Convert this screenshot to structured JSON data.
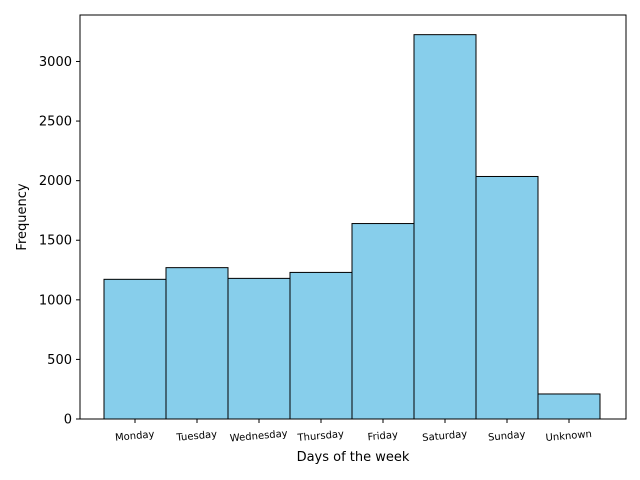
{
  "chart_data": {
    "type": "bar",
    "title": "",
    "xlabel": "Days of the week",
    "ylabel": "Frequency",
    "categories": [
      "Monday",
      "Tuesday",
      "Wednesday",
      "Thursday",
      "Friday",
      "Saturday",
      "Sunday",
      "Unknown"
    ],
    "values": [
      1172,
      1270,
      1180,
      1230,
      1640,
      3225,
      2035,
      210
    ],
    "ylim": [
      0,
      3390
    ],
    "yticks": [
      0,
      500,
      1000,
      1500,
      2000,
      2500,
      3000
    ],
    "bar_color": "#87ceeb",
    "edge_color": "#000000",
    "grid": false,
    "legend": "none"
  }
}
